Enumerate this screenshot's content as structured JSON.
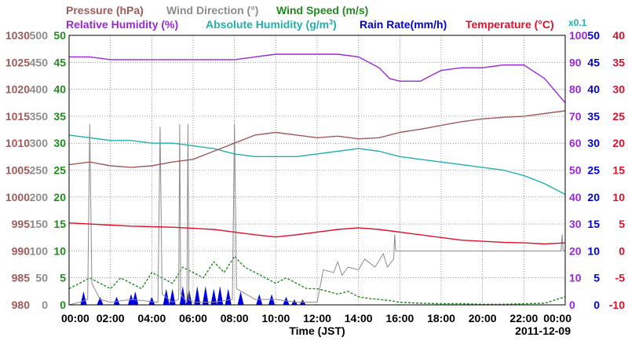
{
  "chart_data": {
    "type": "line",
    "date": "2011-12-09",
    "xlabel": "Time (JST)",
    "x_ticks": [
      "00:00",
      "02:00",
      "04:00",
      "06:00",
      "08:00",
      "10:00",
      "12:00",
      "14:00",
      "16:00",
      "18:00",
      "20:00",
      "22:00",
      "00:00"
    ],
    "x_range_hours": [
      0,
      24
    ],
    "grid": true,
    "colors": {
      "pressure": "#a05a5a",
      "wind_direction": "#8c8c8c",
      "wind_speed": "#1e8c1e",
      "relative_humidity": "#9a28d8",
      "absolute_humidity": "#20b0b0",
      "rain_rate": "#0000e0",
      "temperature": "#e0102a"
    },
    "legend": {
      "pressure": "Pressure (hPa)",
      "wind_direction": "Wind Direction (°)",
      "wind_speed": "Wind Speed (m/s)",
      "relative_humidity": "Relative Humidity (%)",
      "absolute_humidity": "Absolute Humidity (g/m",
      "absolute_humidity_sup": "3",
      "absolute_humidity_end": ")",
      "rain_rate": "Rain Rate(mm/h)",
      "temperature": "Temperature (°C)",
      "rain_scale_note": "x0.1"
    },
    "axes": {
      "pressure": {
        "range": [
          980,
          1030
        ],
        "ticks": [
          "1030",
          "1025",
          "1020",
          "1015",
          "1010",
          "1005",
          "1000",
          "995",
          "990",
          "985",
          "980"
        ]
      },
      "wind_direction": {
        "range": [
          0,
          500
        ],
        "ticks": [
          "500",
          "450",
          "400",
          "350",
          "300",
          "250",
          "200",
          "150",
          "100",
          "50",
          "0"
        ]
      },
      "wind_speed": {
        "range": [
          0,
          50
        ],
        "ticks": [
          "50",
          "45",
          "40",
          "35",
          "30",
          "25",
          "20",
          "15",
          "10",
          "5",
          "0"
        ]
      },
      "relative_humidity": {
        "range": [
          0,
          100
        ],
        "ticks": [
          "100",
          "90",
          "80",
          "70",
          "60",
          "50",
          "40",
          "30",
          "20",
          "10",
          "0"
        ]
      },
      "rain_rate": {
        "range": [
          0,
          50
        ],
        "ticks": [
          "50",
          "45",
          "40",
          "35",
          "30",
          "25",
          "20",
          "15",
          "10",
          "5",
          "0"
        ]
      },
      "temperature": {
        "range": [
          -10,
          40
        ],
        "ticks": [
          "40",
          "35",
          "30",
          "25",
          "20",
          "15",
          "10",
          "5",
          "0",
          "-5",
          "-10"
        ]
      }
    },
    "series": [
      {
        "name": "Pressure (hPa)",
        "key": "pressure",
        "axis": "pressure",
        "x": [
          0,
          1,
          2,
          3,
          4,
          5,
          6,
          7,
          8,
          9,
          10,
          11,
          12,
          13,
          14,
          15,
          16,
          17,
          18,
          19,
          20,
          21,
          22,
          23,
          24
        ],
        "y": [
          1006.0,
          1006.5,
          1005.8,
          1005.5,
          1005.8,
          1006.5,
          1007.0,
          1008.5,
          1010.0,
          1011.5,
          1012.0,
          1011.5,
          1011.0,
          1011.3,
          1010.8,
          1011.0,
          1012.0,
          1012.6,
          1013.3,
          1014.0,
          1014.5,
          1014.8,
          1015.0,
          1015.5,
          1016.0
        ]
      },
      {
        "name": "Relative Humidity (%)",
        "key": "relative_humidity",
        "axis": "relative_humidity",
        "x": [
          0,
          1,
          2,
          3,
          4,
          5,
          6,
          7,
          8,
          9,
          10,
          11,
          12,
          13,
          14,
          15,
          15.5,
          16,
          17,
          17.5,
          18,
          19,
          20,
          21,
          22,
          23,
          24
        ],
        "y": [
          92,
          92,
          91,
          91,
          91,
          91,
          91,
          91,
          91,
          92,
          93,
          93,
          93,
          93,
          92,
          88,
          84,
          83,
          83,
          85,
          87,
          88,
          88,
          89,
          89,
          84,
          75
        ]
      },
      {
        "name": "Absolute Humidity (g/m3)",
        "key": "absolute_humidity",
        "axis": "relative_humidity",
        "x": [
          0,
          1,
          2,
          3,
          4,
          5,
          6,
          7,
          8,
          9,
          10,
          11,
          12,
          13,
          14,
          15,
          16,
          17,
          18,
          19,
          20,
          21,
          22,
          23,
          24
        ],
        "y": [
          63,
          62,
          61,
          61,
          60,
          60,
          59,
          58,
          56,
          55,
          55,
          55,
          56,
          57,
          58,
          57,
          55,
          54,
          53,
          52,
          51,
          50,
          48,
          45,
          41
        ]
      },
      {
        "name": "Temperature (°C)",
        "key": "temperature",
        "axis": "temperature",
        "x": [
          0,
          1,
          2,
          3,
          4,
          5,
          6,
          7,
          8,
          9,
          10,
          11,
          12,
          13,
          14,
          15,
          16,
          17,
          18,
          19,
          20,
          21,
          22,
          23,
          24
        ],
        "y": [
          5.2,
          5.0,
          4.8,
          4.6,
          4.5,
          4.4,
          4.2,
          4.0,
          3.5,
          3.0,
          2.6,
          3.0,
          3.5,
          4.0,
          4.3,
          4.0,
          3.5,
          3.0,
          2.5,
          2.0,
          1.8,
          1.6,
          1.5,
          1.3,
          1.5
        ]
      },
      {
        "name": "Wind Direction (°)",
        "key": "wind_direction",
        "axis": "wind_direction",
        "x": [
          0,
          0.5,
          0.9,
          1.0,
          1.1,
          1.5,
          2,
          3,
          4.3,
          4.4,
          4.5,
          5,
          5.3,
          5.35,
          5.4,
          5.7,
          5.75,
          5.8,
          6,
          7,
          7.9,
          8.0,
          8.1,
          9,
          10,
          11,
          12,
          12.3,
          12.8,
          13,
          13.2,
          13.5,
          14,
          14.3,
          14.8,
          15.2,
          15.4,
          15.7,
          15.75,
          15.8,
          16,
          18,
          20,
          22,
          23.8,
          23.85,
          23.9,
          24
        ],
        "y": [
          0,
          5,
          10,
          335,
          40,
          10,
          5,
          10,
          5,
          330,
          20,
          5,
          10,
          335,
          20,
          5,
          335,
          10,
          5,
          5,
          10,
          335,
          30,
          10,
          10,
          5,
          5,
          65,
          60,
          80,
          55,
          70,
          65,
          85,
          70,
          95,
          70,
          85,
          130,
          100,
          100,
          100,
          100,
          100,
          100,
          130,
          100,
          100
        ]
      },
      {
        "name": "Wind Speed (m/s)",
        "key": "wind_speed",
        "axis": "wind_speed",
        "x": [
          0,
          0.5,
          1,
          1.5,
          2,
          2.5,
          3,
          3.5,
          4,
          4.5,
          5,
          5.5,
          6,
          6.5,
          7,
          7.5,
          8,
          8.5,
          9,
          9.5,
          10,
          10.5,
          11,
          11.5,
          12,
          12.5,
          13,
          13.5,
          14,
          14.5,
          15,
          15.5,
          16,
          17,
          18,
          19,
          20,
          21,
          22,
          23,
          24
        ],
        "y": [
          3,
          4,
          5,
          4,
          3,
          5,
          4,
          3,
          6,
          5,
          4,
          7,
          6,
          5,
          8,
          6,
          9,
          7,
          6,
          5,
          4,
          5,
          4,
          3,
          3,
          2.5,
          2,
          2.5,
          1.5,
          1.2,
          1,
          0.8,
          0.5,
          0.3,
          0.2,
          0.2,
          0.1,
          0.1,
          0.2,
          0.3,
          1.5
        ]
      },
      {
        "name": "Rain Rate(mm/h)",
        "key": "rain_rate",
        "axis": "rain_rate",
        "x": [
          0.7,
          1.5,
          2.3,
          3.0,
          3.2,
          4.0,
          4.7,
          5.0,
          5.5,
          5.8,
          6.2,
          6.6,
          7.0,
          7.3,
          7.7,
          8.3,
          9.2,
          9.8,
          10.5,
          10.9,
          11.3
        ],
        "y": [
          2.5,
          1.5,
          1.5,
          2.0,
          2.5,
          1.5,
          3.0,
          3.0,
          3.5,
          3.0,
          3.5,
          3.5,
          3.0,
          3.5,
          3.0,
          2.5,
          2.0,
          2.0,
          1.5,
          1.0,
          1.0
        ]
      }
    ]
  }
}
